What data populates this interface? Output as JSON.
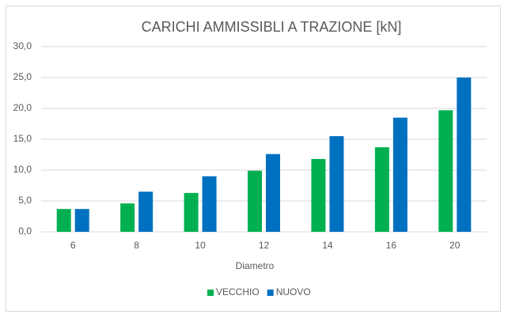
{
  "chart_data": {
    "type": "bar",
    "title": "CARICHI AMMISSIBLI A TRAZIONE [kN]",
    "x_label": "Diametro",
    "categories": [
      "6",
      "8",
      "10",
      "12",
      "14",
      "16",
      "20"
    ],
    "series": [
      {
        "name": "VECCHIO",
        "color": "#00b050",
        "values": [
          3.7,
          4.6,
          6.3,
          9.9,
          11.8,
          13.7,
          19.7
        ]
      },
      {
        "name": "NUOVO",
        "color": "#0070c0",
        "values": [
          3.7,
          6.5,
          9.0,
          12.6,
          15.5,
          18.5,
          25.0
        ]
      }
    ],
    "ylim": [
      0,
      30
    ],
    "yticks": [
      {
        "value": 0,
        "label": "0,0"
      },
      {
        "value": 5,
        "label": "5,0"
      },
      {
        "value": 10,
        "label": "10,0"
      },
      {
        "value": 15,
        "label": "15,0"
      },
      {
        "value": 20,
        "label": "20,0"
      },
      {
        "value": 25,
        "label": "25,0"
      },
      {
        "value": 30,
        "label": "30,0"
      }
    ],
    "grid": true,
    "legend": "bottom"
  }
}
